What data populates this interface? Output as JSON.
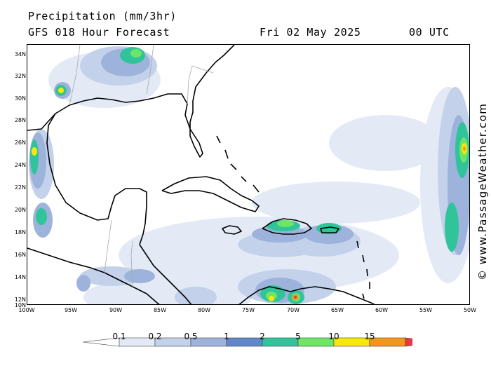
{
  "header": {
    "title": "Precipitation (mm/3hr)",
    "subtitle": "GFS 018 Hour Forecast",
    "date": "Fri 02 May 2025",
    "utc": "00 UTC"
  },
  "watermark": "© www.PassageWeather.com",
  "map": {
    "lat_ticks": [
      "34N",
      "32N",
      "30N",
      "28N",
      "26N",
      "24N",
      "22N",
      "20N",
      "18N",
      "16N",
      "14N",
      "12N",
      "10N"
    ],
    "lon_ticks": [
      "100W",
      "95W",
      "90W",
      "85W",
      "80W",
      "75W",
      "70W",
      "65W",
      "60W",
      "55W",
      "50W"
    ],
    "land_color": "#000000",
    "background": "#ffffff"
  },
  "legend": {
    "labels": [
      "0.1",
      "0.2",
      "0.5",
      "1",
      "2",
      "5",
      "10",
      "15"
    ],
    "colors": [
      "#ffffff",
      "#e3eaf6",
      "#c3d1ea",
      "#9db3dc",
      "#5f87c9",
      "#31c49a",
      "#6ee665",
      "#f8e70a",
      "#f49718",
      "#e83843"
    ]
  }
}
